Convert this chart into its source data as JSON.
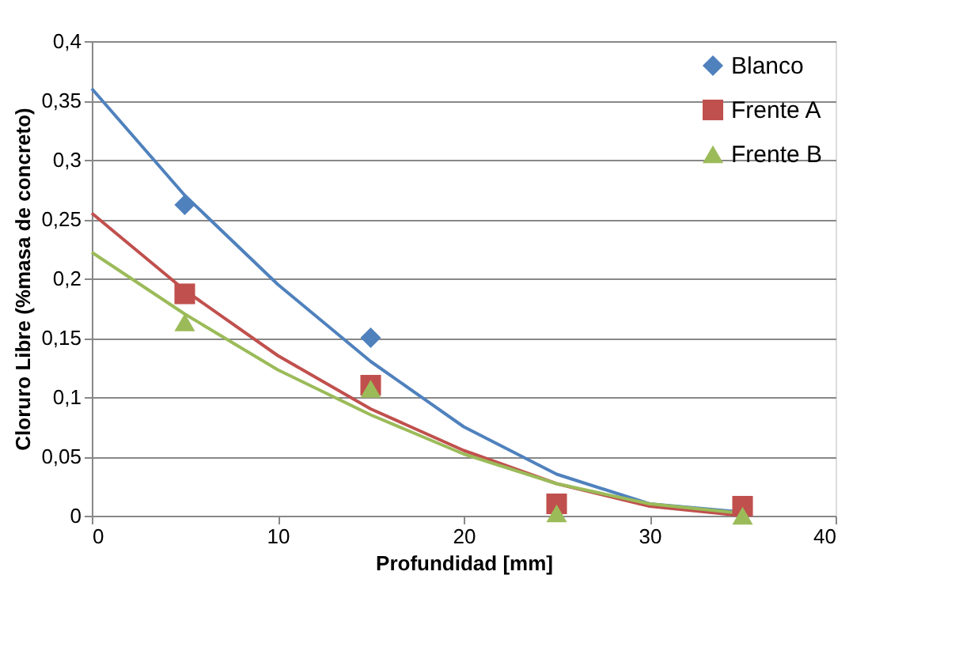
{
  "chart_data": {
    "type": "scatter",
    "xlabel": "Profundidad [mm]",
    "ylabel": "Cloruro Libre (%masa de concreto)",
    "x": [
      5,
      15,
      25,
      35
    ],
    "xlim": [
      0,
      40
    ],
    "xticks": [
      0,
      10,
      20,
      30,
      40
    ],
    "ylim": [
      0,
      0.4
    ],
    "yticks": [
      {
        "value": 0,
        "label": "0"
      },
      {
        "value": 0.05,
        "label": "0,05"
      },
      {
        "value": 0.1,
        "label": "0,1"
      },
      {
        "value": 0.15,
        "label": "0,15"
      },
      {
        "value": 0.2,
        "label": "0,2"
      },
      {
        "value": 0.25,
        "label": "0,25"
      },
      {
        "value": 0.3,
        "label": "0,3"
      },
      {
        "value": 0.35,
        "label": "0,35"
      },
      {
        "value": 0.4,
        "label": "0,4"
      }
    ],
    "grid": "y",
    "legend": "top right",
    "series": [
      {
        "name": "Blanco",
        "marker": "diamond",
        "color": "#4f81bd",
        "values": [
          0.262,
          0.15,
          null,
          null
        ]
      },
      {
        "name": "Frente A",
        "marker": "square",
        "color": "#c0504d",
        "values": [
          0.187,
          0.11,
          0.01,
          0.008
        ]
      },
      {
        "name": "Frente B",
        "marker": "triangle",
        "color": "#9bbb59",
        "values": [
          0.163,
          0.107,
          0.002,
          0.0
        ]
      },
      {
        "type": "line",
        "marker": "none",
        "line_style": "solid",
        "color": "#4f81bd",
        "x": [
          0,
          5,
          10,
          15,
          20,
          25,
          30,
          35
        ],
        "values": [
          0.36,
          0.27,
          0.195,
          0.13,
          0.075,
          0.035,
          0.01,
          0.003
        ]
      },
      {
        "type": "line",
        "marker": "none",
        "line_style": "solid",
        "color": "#c0504d",
        "x": [
          0,
          5,
          10,
          15,
          20,
          25,
          30,
          35
        ],
        "values": [
          0.255,
          0.19,
          0.135,
          0.09,
          0.055,
          0.027,
          0.008,
          0.0
        ]
      },
      {
        "type": "line",
        "marker": "none",
        "line_style": "solid",
        "color": "#9bbb59",
        "x": [
          0,
          5,
          10,
          15,
          20,
          25,
          30,
          35
        ],
        "values": [
          0.222,
          0.17,
          0.123,
          0.085,
          0.052,
          0.027,
          0.01,
          0.002
        ]
      }
    ]
  }
}
